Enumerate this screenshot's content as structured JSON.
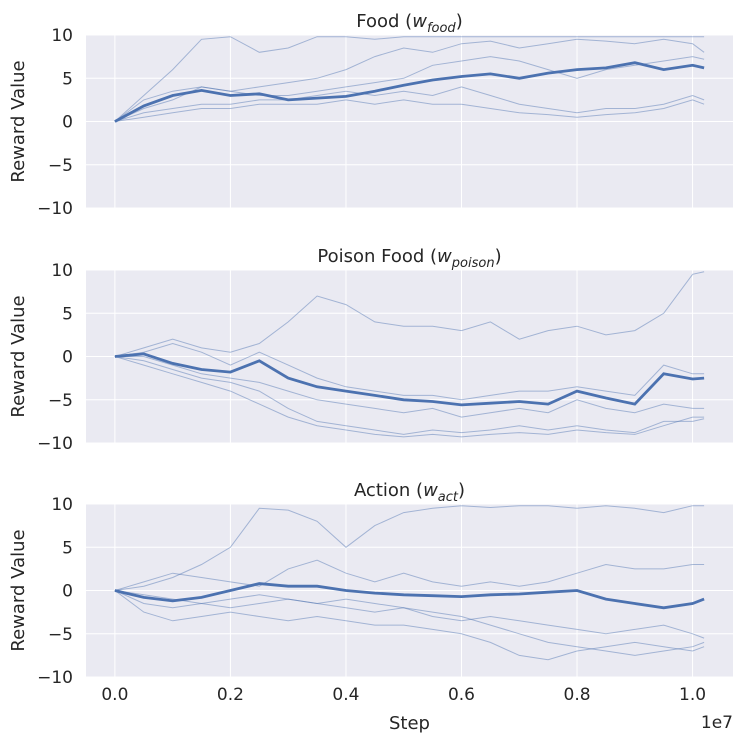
{
  "figure": {
    "xlabel": "Step",
    "x_offset_label": "1e7",
    "color": "#4c72b0"
  },
  "chart_data": [
    {
      "type": "line",
      "title_main": "Food (",
      "title_symbol": "w",
      "title_sub": "food",
      "title_close": ")",
      "ylabel": "Reward Value",
      "ylim": [
        -10,
        10
      ],
      "yticks": [
        "10",
        "5",
        "0",
        "−5",
        "−10"
      ],
      "xlim": [
        -0.05,
        1.07
      ],
      "grid": true,
      "series": [
        {
          "role": "mean",
          "x": [
            0,
            0.05,
            0.1,
            0.15,
            0.2,
            0.25,
            0.3,
            0.35,
            0.4,
            0.45,
            0.5,
            0.55,
            0.6,
            0.65,
            0.7,
            0.75,
            0.8,
            0.85,
            0.9,
            0.95,
            1.0,
            1.02
          ],
          "values": [
            0,
            1.8,
            3.0,
            3.6,
            3.0,
            3.2,
            2.5,
            2.7,
            2.9,
            3.5,
            4.2,
            4.8,
            5.2,
            5.5,
            5.0,
            5.6,
            6.0,
            6.2,
            6.8,
            6.0,
            6.5,
            6.2
          ]
        },
        {
          "role": "run",
          "x": [
            0,
            0.05,
            0.1,
            0.15,
            0.2,
            0.25,
            0.3,
            0.35,
            0.4,
            0.45,
            0.5,
            0.55,
            0.6,
            0.65,
            0.7,
            0.75,
            0.8,
            0.85,
            0.9,
            0.95,
            1.0,
            1.02
          ],
          "values": [
            0,
            3.0,
            6.0,
            9.5,
            9.8,
            8.0,
            8.5,
            9.8,
            9.8,
            9.5,
            9.8,
            9.8,
            9.8,
            9.8,
            9.8,
            9.8,
            9.8,
            9.8,
            9.8,
            9.8,
            9.8,
            9.8
          ]
        },
        {
          "role": "run",
          "x": [
            0,
            0.05,
            0.1,
            0.15,
            0.2,
            0.25,
            0.3,
            0.35,
            0.4,
            0.45,
            0.5,
            0.55,
            0.6,
            0.65,
            0.7,
            0.75,
            0.8,
            0.85,
            0.9,
            0.95,
            1.0,
            1.02
          ],
          "values": [
            0,
            1.5,
            2.5,
            4.0,
            3.5,
            4.0,
            4.5,
            5.0,
            6.0,
            7.5,
            8.5,
            8.0,
            9.0,
            9.3,
            8.5,
            9.0,
            9.5,
            9.3,
            9.0,
            9.5,
            9.0,
            8.0
          ]
        },
        {
          "role": "run",
          "x": [
            0,
            0.05,
            0.1,
            0.15,
            0.2,
            0.25,
            0.3,
            0.35,
            0.4,
            0.45,
            0.5,
            0.55,
            0.6,
            0.65,
            0.7,
            0.75,
            0.8,
            0.85,
            0.9,
            0.95,
            1.0,
            1.02
          ],
          "values": [
            0,
            2.5,
            3.5,
            4.0,
            3.5,
            3.0,
            3.0,
            3.5,
            4.0,
            4.5,
            5.0,
            6.5,
            7.0,
            7.5,
            7.0,
            6.0,
            5.0,
            6.0,
            6.5,
            7.0,
            7.5,
            7.2
          ]
        },
        {
          "role": "run",
          "x": [
            0,
            0.05,
            0.1,
            0.15,
            0.2,
            0.25,
            0.3,
            0.35,
            0.4,
            0.45,
            0.5,
            0.55,
            0.6,
            0.65,
            0.7,
            0.75,
            0.8,
            0.85,
            0.9,
            0.95,
            1.0,
            1.02
          ],
          "values": [
            0,
            1.0,
            1.5,
            2.0,
            2.0,
            2.5,
            2.5,
            3.0,
            3.5,
            3.0,
            3.5,
            3.0,
            4.0,
            3.0,
            2.0,
            1.5,
            1.0,
            1.5,
            1.5,
            2.0,
            3.0,
            2.5
          ]
        },
        {
          "role": "run",
          "x": [
            0,
            0.05,
            0.1,
            0.15,
            0.2,
            0.25,
            0.3,
            0.35,
            0.4,
            0.45,
            0.5,
            0.55,
            0.6,
            0.65,
            0.7,
            0.75,
            0.8,
            0.85,
            0.9,
            0.95,
            1.0,
            1.02
          ],
          "values": [
            0,
            0.5,
            1.0,
            1.5,
            1.5,
            2.0,
            2.0,
            2.0,
            2.5,
            2.0,
            2.5,
            2.0,
            2.0,
            1.5,
            1.0,
            0.8,
            0.5,
            0.8,
            1.0,
            1.5,
            2.5,
            2.0
          ]
        }
      ]
    },
    {
      "type": "line",
      "title_main": "Poison Food (",
      "title_symbol": "w",
      "title_sub": "poison",
      "title_close": ")",
      "ylabel": "Reward Value",
      "ylim": [
        -10,
        10
      ],
      "yticks": [
        "10",
        "5",
        "0",
        "−5",
        "−10"
      ],
      "xlim": [
        -0.05,
        1.07
      ],
      "grid": true,
      "series": [
        {
          "role": "mean",
          "x": [
            0,
            0.05,
            0.1,
            0.15,
            0.2,
            0.25,
            0.3,
            0.35,
            0.4,
            0.45,
            0.5,
            0.55,
            0.6,
            0.65,
            0.7,
            0.75,
            0.8,
            0.85,
            0.9,
            0.95,
            1.0,
            1.02
          ],
          "values": [
            0,
            0.3,
            -0.8,
            -1.5,
            -1.8,
            -0.5,
            -2.5,
            -3.5,
            -4.0,
            -4.5,
            -5.0,
            -5.2,
            -5.6,
            -5.4,
            -5.2,
            -5.5,
            -4.0,
            -4.8,
            -5.5,
            -2.0,
            -2.6,
            -2.5
          ]
        },
        {
          "role": "run",
          "x": [
            0,
            0.05,
            0.1,
            0.15,
            0.2,
            0.25,
            0.3,
            0.35,
            0.4,
            0.45,
            0.5,
            0.55,
            0.6,
            0.65,
            0.7,
            0.75,
            0.8,
            0.85,
            0.9,
            0.95,
            1.0,
            1.02
          ],
          "values": [
            0,
            1.0,
            2.0,
            1.0,
            0.5,
            1.5,
            4.0,
            7.0,
            6.0,
            4.0,
            3.5,
            3.5,
            3.0,
            4.0,
            2.0,
            3.0,
            3.5,
            2.5,
            3.0,
            5.0,
            9.5,
            9.8
          ]
        },
        {
          "role": "run",
          "x": [
            0,
            0.05,
            0.1,
            0.15,
            0.2,
            0.25,
            0.3,
            0.35,
            0.4,
            0.45,
            0.5,
            0.55,
            0.6,
            0.65,
            0.7,
            0.75,
            0.8,
            0.85,
            0.9,
            0.95,
            1.0,
            1.02
          ],
          "values": [
            0,
            0.5,
            1.5,
            0.5,
            -1.0,
            0.5,
            -1.0,
            -2.5,
            -3.5,
            -4.0,
            -4.5,
            -4.5,
            -5.0,
            -4.5,
            -4.0,
            -4.0,
            -3.5,
            -4.0,
            -4.5,
            -1.0,
            -2.0,
            -2.0
          ]
        },
        {
          "role": "run",
          "x": [
            0,
            0.05,
            0.1,
            0.15,
            0.2,
            0.25,
            0.3,
            0.35,
            0.4,
            0.45,
            0.5,
            0.55,
            0.6,
            0.65,
            0.7,
            0.75,
            0.8,
            0.85,
            0.9,
            0.95,
            1.0,
            1.02
          ],
          "values": [
            0,
            0.0,
            -1.0,
            -2.0,
            -2.5,
            -3.0,
            -4.0,
            -5.0,
            -5.5,
            -6.0,
            -6.5,
            -6.0,
            -7.0,
            -6.5,
            -6.0,
            -6.5,
            -5.0,
            -6.0,
            -6.5,
            -5.5,
            -6.0,
            -6.0
          ]
        },
        {
          "role": "run",
          "x": [
            0,
            0.05,
            0.1,
            0.15,
            0.2,
            0.25,
            0.3,
            0.35,
            0.4,
            0.45,
            0.5,
            0.55,
            0.6,
            0.65,
            0.7,
            0.75,
            0.8,
            0.85,
            0.9,
            0.95,
            1.0,
            1.02
          ],
          "values": [
            0,
            -0.5,
            -1.5,
            -2.5,
            -3.0,
            -4.0,
            -6.0,
            -7.5,
            -8.0,
            -8.5,
            -9.0,
            -8.5,
            -8.8,
            -8.5,
            -8.0,
            -8.5,
            -8.0,
            -8.5,
            -8.8,
            -7.5,
            -7.5,
            -7.2
          ]
        },
        {
          "role": "run",
          "x": [
            0,
            0.05,
            0.1,
            0.15,
            0.2,
            0.25,
            0.3,
            0.35,
            0.4,
            0.45,
            0.5,
            0.55,
            0.6,
            0.65,
            0.7,
            0.75,
            0.8,
            0.85,
            0.9,
            0.95,
            1.0,
            1.02
          ],
          "values": [
            0,
            -1.0,
            -2.0,
            -3.0,
            -4.0,
            -5.5,
            -7.0,
            -8.0,
            -8.5,
            -9.0,
            -9.3,
            -9.0,
            -9.3,
            -9.0,
            -8.8,
            -9.0,
            -8.5,
            -8.8,
            -9.0,
            -8.0,
            -7.0,
            -7.0
          ]
        }
      ]
    },
    {
      "type": "line",
      "title_main": "Action (",
      "title_symbol": "w",
      "title_sub": "act",
      "title_close": ")",
      "ylabel": "Reward Value",
      "ylim": [
        -10,
        10
      ],
      "yticks": [
        "10",
        "5",
        "0",
        "−5",
        "−10"
      ],
      "xticks": [
        "0.0",
        "0.2",
        "0.4",
        "0.6",
        "0.8",
        "1.0"
      ],
      "xtick_values": [
        0,
        0.2,
        0.4,
        0.6,
        0.8,
        1.0
      ],
      "xlim": [
        -0.05,
        1.07
      ],
      "grid": true,
      "series": [
        {
          "role": "mean",
          "x": [
            0,
            0.05,
            0.1,
            0.15,
            0.2,
            0.25,
            0.3,
            0.35,
            0.4,
            0.45,
            0.5,
            0.55,
            0.6,
            0.65,
            0.7,
            0.75,
            0.8,
            0.85,
            0.9,
            0.95,
            1.0,
            1.02
          ],
          "values": [
            0,
            -0.8,
            -1.2,
            -0.8,
            0.0,
            0.8,
            0.5,
            0.5,
            0.0,
            -0.3,
            -0.5,
            -0.6,
            -0.7,
            -0.5,
            -0.4,
            -0.2,
            0.0,
            -1.0,
            -1.5,
            -2.0,
            -1.5,
            -1.0
          ]
        },
        {
          "role": "run",
          "x": [
            0,
            0.05,
            0.1,
            0.15,
            0.2,
            0.25,
            0.3,
            0.35,
            0.4,
            0.45,
            0.5,
            0.55,
            0.6,
            0.65,
            0.7,
            0.75,
            0.8,
            0.85,
            0.9,
            0.95,
            1.0,
            1.02
          ],
          "values": [
            0,
            0.5,
            1.5,
            3.0,
            5.0,
            9.5,
            9.3,
            8.0,
            5.0,
            7.5,
            9.0,
            9.5,
            9.8,
            9.6,
            9.8,
            9.8,
            9.5,
            9.8,
            9.5,
            9.0,
            9.8,
            9.8
          ]
        },
        {
          "role": "run",
          "x": [
            0,
            0.05,
            0.1,
            0.15,
            0.2,
            0.25,
            0.3,
            0.35,
            0.4,
            0.45,
            0.5,
            0.55,
            0.6,
            0.65,
            0.7,
            0.75,
            0.8,
            0.85,
            0.9,
            0.95,
            1.0,
            1.02
          ],
          "values": [
            0,
            1.0,
            2.0,
            1.5,
            1.0,
            0.5,
            2.5,
            3.5,
            2.0,
            1.0,
            2.0,
            1.0,
            0.5,
            1.0,
            0.5,
            1.0,
            2.0,
            3.0,
            2.5,
            2.5,
            3.0,
            3.0
          ]
        },
        {
          "role": "run",
          "x": [
            0,
            0.05,
            0.1,
            0.15,
            0.2,
            0.25,
            0.3,
            0.35,
            0.4,
            0.45,
            0.5,
            0.55,
            0.6,
            0.65,
            0.7,
            0.75,
            0.8,
            0.85,
            0.9,
            0.95,
            1.0,
            1.02
          ],
          "values": [
            0,
            -1.5,
            -2.0,
            -1.5,
            -1.0,
            -0.5,
            -1.0,
            -1.5,
            -2.0,
            -2.5,
            -2.0,
            -3.0,
            -3.5,
            -3.0,
            -3.5,
            -4.0,
            -4.5,
            -5.0,
            -4.5,
            -4.0,
            -5.0,
            -5.5
          ]
        },
        {
          "role": "run",
          "x": [
            0,
            0.05,
            0.1,
            0.15,
            0.2,
            0.25,
            0.3,
            0.35,
            0.4,
            0.45,
            0.5,
            0.55,
            0.6,
            0.65,
            0.7,
            0.75,
            0.8,
            0.85,
            0.9,
            0.95,
            1.0,
            1.02
          ],
          "values": [
            0,
            -2.5,
            -3.5,
            -3.0,
            -2.5,
            -3.0,
            -3.5,
            -3.0,
            -3.5,
            -4.0,
            -4.0,
            -4.5,
            -5.0,
            -6.0,
            -7.5,
            -8.0,
            -7.0,
            -6.5,
            -6.0,
            -6.5,
            -7.0,
            -6.5
          ]
        },
        {
          "role": "run",
          "x": [
            0,
            0.05,
            0.1,
            0.15,
            0.2,
            0.25,
            0.3,
            0.35,
            0.4,
            0.45,
            0.5,
            0.55,
            0.6,
            0.65,
            0.7,
            0.75,
            0.8,
            0.85,
            0.9,
            0.95,
            1.0,
            1.02
          ],
          "values": [
            0,
            -0.5,
            -1.0,
            -1.5,
            -2.0,
            -1.5,
            -1.0,
            -1.5,
            -1.0,
            -1.5,
            -2.0,
            -2.5,
            -3.0,
            -4.0,
            -5.0,
            -6.0,
            -6.5,
            -7.0,
            -7.5,
            -7.0,
            -6.5,
            -6.0
          ]
        }
      ]
    }
  ]
}
